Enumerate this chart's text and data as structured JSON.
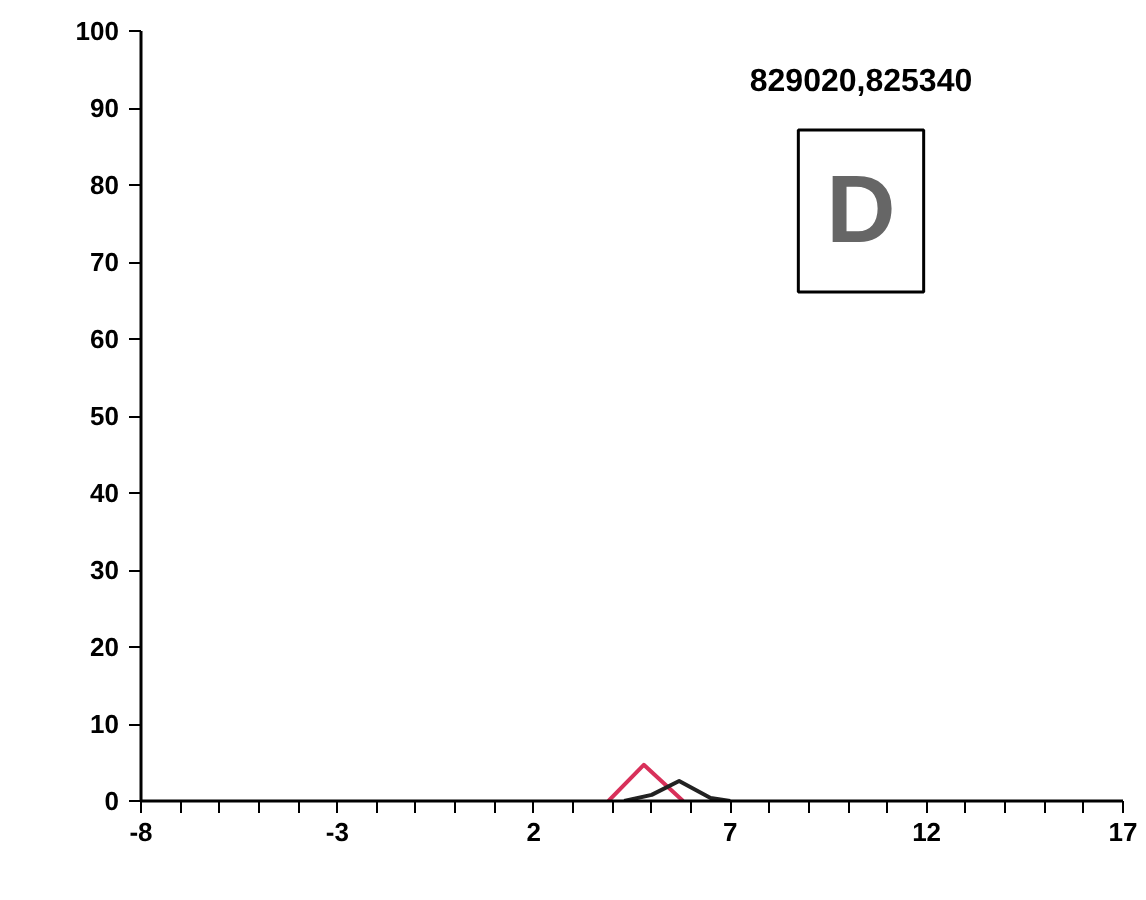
{
  "chart_data": {
    "type": "line",
    "title": "829020,825340",
    "annotations": [
      "D"
    ],
    "series": [
      {
        "color": "#d8305a",
        "x": [
          3.9,
          4.8,
          5.8
        ],
        "values": [
          0,
          4.7,
          0
        ]
      },
      {
        "color": "#222222",
        "x": [
          4.3,
          5.0,
          5.7,
          6.1,
          6.5,
          7.0
        ],
        "values": [
          0,
          0.8,
          2.6,
          1.5,
          0.4,
          0
        ]
      }
    ],
    "xlim": [
      -8,
      17
    ],
    "ylim": [
      0,
      100
    ],
    "xticks": [
      -8,
      {
        "value": -7,
        "label": null
      },
      {
        "value": -6,
        "label": null
      },
      {
        "value": -5,
        "label": null
      },
      {
        "value": -4,
        "label": null
      },
      -3,
      {
        "value": -2,
        "label": null
      },
      {
        "value": -1,
        "label": null
      },
      {
        "value": 0,
        "label": null
      },
      {
        "value": 1,
        "label": null
      },
      2,
      {
        "value": 3,
        "label": null
      },
      {
        "value": 4,
        "label": null
      },
      {
        "value": 5,
        "label": null
      },
      {
        "value": 6,
        "label": null
      },
      7,
      {
        "value": 8,
        "label": null
      },
      {
        "value": 9,
        "label": null
      },
      {
        "value": 10,
        "label": null
      },
      {
        "value": 11,
        "label": null
      },
      12,
      {
        "value": 13,
        "label": null
      },
      {
        "value": 14,
        "label": null
      },
      {
        "value": 15,
        "label": null
      },
      {
        "value": 16,
        "label": null
      },
      17
    ],
    "yticks": [
      0,
      10,
      20,
      30,
      40,
      50,
      60,
      70,
      80,
      90,
      100
    ],
    "grid": false,
    "marker": "none",
    "line_style": "solid"
  }
}
